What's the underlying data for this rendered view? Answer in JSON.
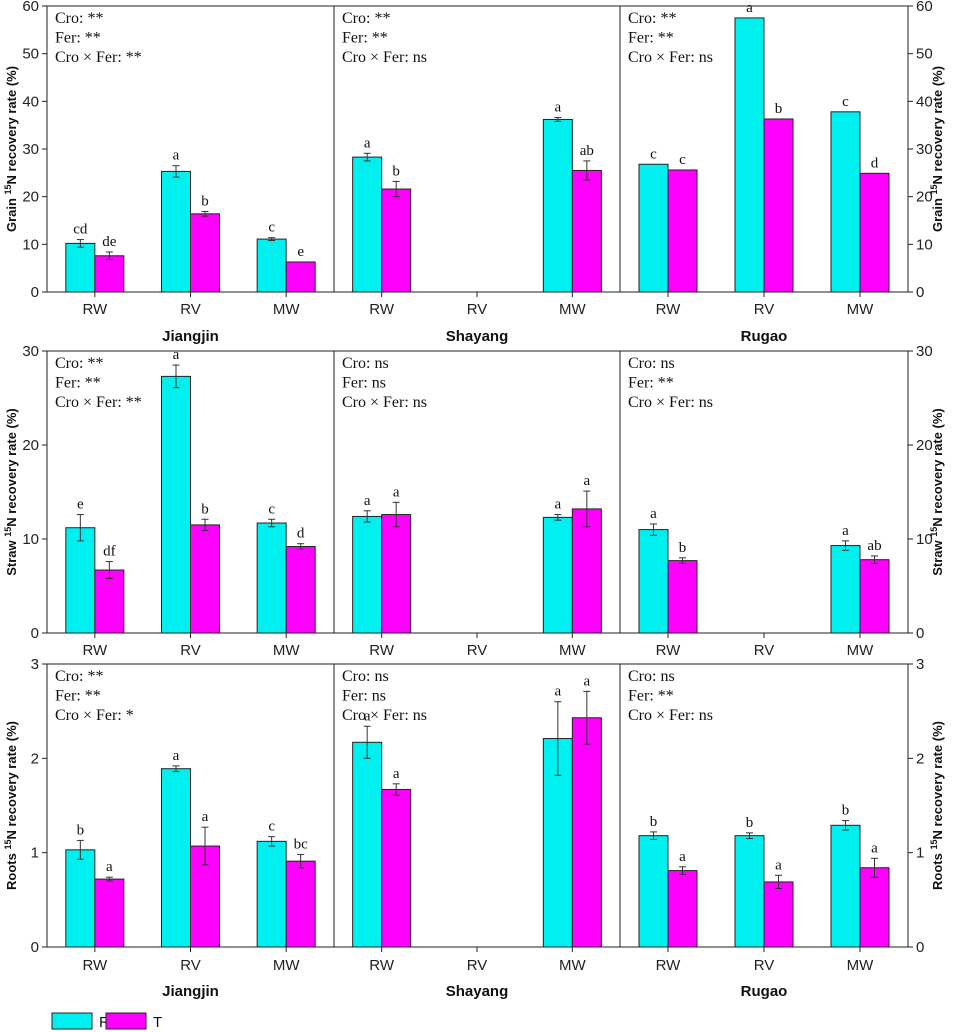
{
  "chart_data": {
    "type": "bar",
    "colors": {
      "R": "#00f0f0",
      "T": "#ff00ff"
    },
    "legend": [
      {
        "label": "R",
        "color": "#00f0f0"
      },
      {
        "label": "T",
        "color": "#ff00ff"
      }
    ],
    "legend_position": "bottom-left",
    "sites": [
      "Jiangjin",
      "Shayang",
      "Rugao"
    ],
    "categories": [
      "RW",
      "RV",
      "MW"
    ],
    "rows": [
      {
        "ylabel_pre": "Grain ",
        "ylabel_sup": "15",
        "ylabel_post": "N recovery rate (%)",
        "ylim": [
          0,
          60
        ],
        "ticks": [
          0,
          10,
          20,
          30,
          40,
          50,
          60
        ],
        "panels": [
          {
            "site": "Jiangjin",
            "annotations": [
              "Cro: **",
              "Fer: **",
              "Cro × Fer: **"
            ],
            "bars": [
              {
                "cat": "RW",
                "R": 10.2,
                "R_err": 0.8,
                "R_sig": "cd",
                "T": 7.6,
                "T_err": 0.8,
                "T_sig": "de"
              },
              {
                "cat": "RV",
                "R": 25.3,
                "R_err": 1.2,
                "R_sig": "a",
                "T": 16.4,
                "T_err": 0.5,
                "T_sig": "b"
              },
              {
                "cat": "MW",
                "R": 11.1,
                "R_err": 0.3,
                "R_sig": "c",
                "T": 6.3,
                "T_err": 0.0,
                "T_sig": "e"
              }
            ]
          },
          {
            "site": "Shayang",
            "annotations": [
              "Cro: **",
              "Fer: **",
              "Cro × Fer: ns"
            ],
            "bars": [
              {
                "cat": "RW",
                "R": 28.3,
                "R_err": 0.8,
                "R_sig": "a",
                "T": 21.6,
                "T_err": 1.6,
                "T_sig": "b"
              },
              {
                "cat": "RV"
              },
              {
                "cat": "MW",
                "R": 36.2,
                "R_err": 0.4,
                "R_sig": "a",
                "T": 25.5,
                "T_err": 2.0,
                "T_sig": "ab"
              }
            ]
          },
          {
            "site": "Rugao",
            "annotations": [
              "Cro: **",
              "Fer: **",
              "Cro × Fer: ns"
            ],
            "bars": [
              {
                "cat": "RW",
                "R": 26.8,
                "R_err": 0.0,
                "R_sig": "c",
                "T": 25.6,
                "T_err": 0.0,
                "T_sig": "c"
              },
              {
                "cat": "RV",
                "R": 57.5,
                "R_err": 0.0,
                "R_sig": "a",
                "T": 36.3,
                "T_err": 0.0,
                "T_sig": "b"
              },
              {
                "cat": "MW",
                "R": 37.8,
                "R_err": 0.0,
                "R_sig": "c",
                "T": 24.9,
                "T_err": 0.0,
                "T_sig": "d"
              }
            ]
          }
        ]
      },
      {
        "ylabel_pre": "Straw ",
        "ylabel_sup": "15",
        "ylabel_post": "N recovery rate (%)",
        "ylim": [
          0,
          30
        ],
        "ticks": [
          0,
          10,
          20,
          30
        ],
        "panels": [
          {
            "site": "Jiangjin",
            "annotations": [
              "Cro: **",
              "Fer: **",
              "Cro × Fer: **"
            ],
            "bars": [
              {
                "cat": "RW",
                "R": 11.2,
                "R_err": 1.4,
                "R_sig": "e",
                "T": 6.7,
                "T_err": 0.9,
                "T_sig": "df"
              },
              {
                "cat": "RV",
                "R": 27.3,
                "R_err": 1.2,
                "R_sig": "a",
                "T": 11.5,
                "T_err": 0.6,
                "T_sig": "b"
              },
              {
                "cat": "MW",
                "R": 11.7,
                "R_err": 0.4,
                "R_sig": "c",
                "T": 9.2,
                "T_err": 0.3,
                "T_sig": "d"
              }
            ]
          },
          {
            "site": "Shayang",
            "annotations": [
              "Cro: ns",
              "Fer: ns",
              "Cro × Fer: ns"
            ],
            "bars": [
              {
                "cat": "RW",
                "R": 12.4,
                "R_err": 0.6,
                "R_sig": "a",
                "T": 12.6,
                "T_err": 1.3,
                "T_sig": "a"
              },
              {
                "cat": "RV"
              },
              {
                "cat": "MW",
                "R": 12.3,
                "R_err": 0.3,
                "R_sig": "a",
                "T": 13.2,
                "T_err": 1.9,
                "T_sig": "a"
              }
            ]
          },
          {
            "site": "Rugao",
            "annotations": [
              "Cro: ns",
              "Fer: **",
              "Cro × Fer: ns"
            ],
            "bars": [
              {
                "cat": "RW",
                "R": 11.0,
                "R_err": 0.6,
                "R_sig": "a",
                "T": 7.7,
                "T_err": 0.3,
                "T_sig": "b"
              },
              {
                "cat": "RV"
              },
              {
                "cat": "MW",
                "R": 9.3,
                "R_err": 0.5,
                "R_sig": "a",
                "T": 7.8,
                "T_err": 0.4,
                "T_sig": "ab"
              }
            ]
          }
        ]
      },
      {
        "ylabel_pre": "Roots ",
        "ylabel_sup": "15",
        "ylabel_post": "N recovery rate (%)",
        "ylim": [
          0,
          3
        ],
        "ticks": [
          0,
          1,
          2,
          3
        ],
        "panels": [
          {
            "site": "Jiangjin",
            "annotations": [
              "Cro: **",
              "Fer: **",
              "Cro × Fer: *"
            ],
            "bars": [
              {
                "cat": "RW",
                "R": 1.03,
                "R_err": 0.1,
                "R_sig": "b",
                "T": 0.72,
                "T_err": 0.02,
                "T_sig": "a"
              },
              {
                "cat": "RV",
                "R": 1.89,
                "R_err": 0.03,
                "R_sig": "a",
                "T": 1.07,
                "T_err": 0.2,
                "T_sig": "a"
              },
              {
                "cat": "MW",
                "R": 1.12,
                "R_err": 0.05,
                "R_sig": "c",
                "T": 0.91,
                "T_err": 0.07,
                "T_sig": "bc"
              }
            ]
          },
          {
            "site": "Shayang",
            "annotations": [
              "Cro: ns",
              "Fer: ns",
              "Cro × Fer: ns"
            ],
            "bars": [
              {
                "cat": "RW",
                "R": 2.17,
                "R_err": 0.17,
                "R_sig": "a",
                "T": 1.67,
                "T_err": 0.06,
                "T_sig": "a"
              },
              {
                "cat": "RV"
              },
              {
                "cat": "MW",
                "R": 2.21,
                "R_err": 0.39,
                "R_sig": "a",
                "T": 2.43,
                "T_err": 0.28,
                "T_sig": "a"
              }
            ]
          },
          {
            "site": "Rugao",
            "annotations": [
              "Cro: ns",
              "Fer: **",
              "Cro × Fer: ns"
            ],
            "bars": [
              {
                "cat": "RW",
                "R": 1.18,
                "R_err": 0.04,
                "R_sig": "b",
                "T": 0.81,
                "T_err": 0.04,
                "T_sig": "a"
              },
              {
                "cat": "RV",
                "R": 1.18,
                "R_err": 0.03,
                "R_sig": "b",
                "T": 0.69,
                "T_err": 0.07,
                "T_sig": "a"
              },
              {
                "cat": "MW",
                "R": 1.29,
                "R_err": 0.05,
                "R_sig": "b",
                "T": 0.84,
                "T_err": 0.1,
                "T_sig": "a"
              }
            ]
          }
        ]
      }
    ]
  }
}
